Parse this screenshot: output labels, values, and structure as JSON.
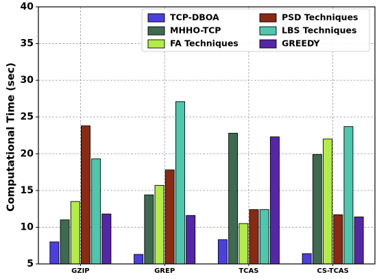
{
  "chart_data": {
    "type": "bar",
    "ylabel": "Computational Time (sec)",
    "xlabel": "",
    "ylim": [
      5,
      40
    ],
    "yticks": [
      5,
      10,
      15,
      20,
      25,
      30,
      35,
      40
    ],
    "grid": true,
    "legend_position": "top-right",
    "categories": [
      "GZIP",
      "GREP",
      "TCAS",
      "CS-TCAS"
    ],
    "series": [
      {
        "name": "TCP-DBOA",
        "color": "#4b3fe0",
        "values": [
          8.0,
          6.3,
          8.3,
          6.4
        ]
      },
      {
        "name": "MHHO-TCP",
        "color": "#3d6b50",
        "values": [
          11.0,
          14.4,
          22.8,
          19.9
        ]
      },
      {
        "name": "FA Techniques",
        "color": "#b2ec45",
        "values": [
          13.5,
          15.7,
          10.5,
          22.0
        ]
      },
      {
        "name": "PSD Techniques",
        "color": "#8a2a12",
        "values": [
          23.8,
          17.8,
          12.4,
          11.7
        ]
      },
      {
        "name": "LBS Techniques",
        "color": "#4fc7ad",
        "values": [
          19.3,
          27.1,
          12.4,
          23.7
        ]
      },
      {
        "name": "GREEDY",
        "color": "#5527a8",
        "values": [
          11.8,
          11.6,
          22.3,
          11.4
        ]
      }
    ]
  }
}
